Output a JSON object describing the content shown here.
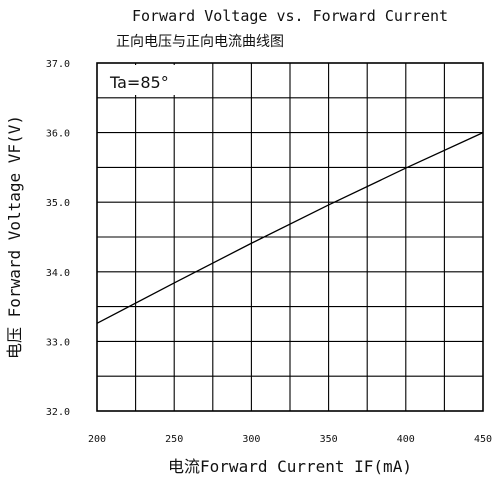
{
  "chart_data": {
    "type": "line",
    "title": "Forward Voltage vs. Forward Current",
    "subtitle": "正向电压与正向电流曲线图",
    "xlabel": "电流Forward Current IF(mA)",
    "ylabel": "电压 Forward Voltage VF(V)",
    "annotation": "Ta=85°",
    "x_ticks": [
      "200",
      "250",
      "300",
      "350",
      "400",
      "450"
    ],
    "y_ticks": [
      "37.0",
      "36.0",
      "35.0",
      "34.0",
      "33.0",
      "32.0"
    ],
    "xlim": [
      200,
      450
    ],
    "ylim": [
      32.0,
      37.0
    ],
    "grid": true,
    "series": [
      {
        "x": [
          200,
          250,
          300,
          350,
          400,
          450
        ],
        "y": [
          33.26,
          33.84,
          34.41,
          34.96,
          35.49,
          36.0
        ]
      }
    ]
  }
}
